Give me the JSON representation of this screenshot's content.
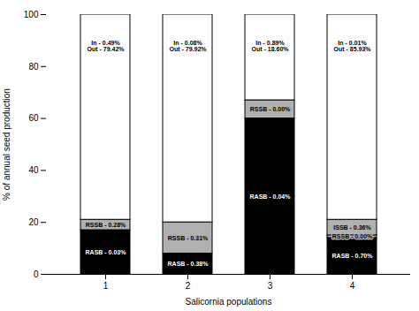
{
  "chart_data": {
    "type": "bar",
    "stacked": true,
    "categories": [
      "1",
      "2",
      "3",
      "4"
    ],
    "series": [
      {
        "name": "RASB",
        "color": "#000000",
        "values": [
          17.0,
          8.0,
          60.0,
          14.0
        ]
      },
      {
        "name": "RSSB",
        "color": "#b0b0b0",
        "values": [
          4.0,
          12.0,
          7.0,
          1.0
        ]
      },
      {
        "name": "ISSB",
        "color": "#b0b0b0",
        "values": [
          0.0,
          0.0,
          0.0,
          6.0
        ]
      },
      {
        "name": "Out",
        "color": "#ffffff",
        "values": [
          79.0,
          80.0,
          33.0,
          79.0
        ]
      }
    ],
    "xlabel": "Salicornia populations",
    "ylabel": "% of annual seed production",
    "ylim": [
      0,
      100
    ],
    "yticks": [
      0,
      20,
      40,
      60,
      80,
      100
    ],
    "grid": false,
    "annotations": [
      {
        "category": "1",
        "series": "RASB",
        "text": "RASB - 0.03%"
      },
      {
        "category": "2",
        "series": "RASB",
        "text": "RASB - 0.38%"
      },
      {
        "category": "3",
        "series": "RASB",
        "text": "RASB - 0.04%"
      },
      {
        "category": "4",
        "series": "RASB",
        "text": "RASB - 0.70%"
      },
      {
        "category": "1",
        "series": "RSSB",
        "text": "RSSB - 0.28%"
      },
      {
        "category": "2",
        "series": "RSSB",
        "text": "RSSB - 0.31%"
      },
      {
        "category": "3",
        "series": "RSSB",
        "text": "RSSB - 0.00%"
      },
      {
        "category": "4",
        "series": "RSSB",
        "text": "RSSB - 0.00%"
      },
      {
        "category": "4",
        "series": "ISSB",
        "text": "ISSB - 0.36%"
      },
      {
        "category": "1",
        "y": 86,
        "text": "In - 0.49%\nOut - 79.42%"
      },
      {
        "category": "2",
        "y": 86,
        "text": "In - 0.08%\nOut - 79.92%"
      },
      {
        "category": "3",
        "y": 86,
        "text": "In - 0.89%\nOut - 18.60%"
      },
      {
        "category": "4",
        "y": 86,
        "text": "In - 0.01%\nOut - 85.93%"
      }
    ]
  }
}
